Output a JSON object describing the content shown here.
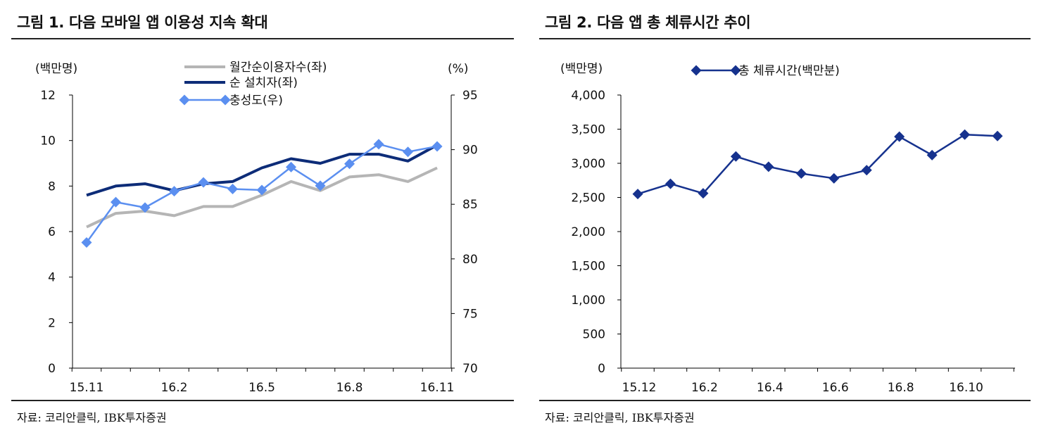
{
  "figures": [
    {
      "title": "그림 1. 다음 모바일 앱 이용성 지속 확대",
      "source": "자료: 코리안클릭, IBK투자증권"
    },
    {
      "title": "그림 2. 다음 앱 총 체류시간 추이",
      "source": "자료: 코리안클릭, IBK투자증권"
    }
  ],
  "colors": {
    "monthly_users": "#b5b5b5",
    "installers": "#0d2c78",
    "loyalty": "#5b8ff0",
    "dwell_time": "#16328e"
  },
  "chart_data": [
    {
      "type": "line",
      "title": "그림 1. 다음 모바일 앱 이용성 지속 확대",
      "ylabel_left": "(백만명)",
      "ylabel_right": "(%)",
      "ylim_left": [
        0,
        12
      ],
      "ylim_right": [
        70,
        95
      ],
      "yticks_left": [
        "0",
        "2",
        "4",
        "6",
        "8",
        "10",
        "12"
      ],
      "yticks_right": [
        "70",
        "75",
        "80",
        "85",
        "90",
        "95"
      ],
      "x_tick_labels": [
        {
          "index": 0,
          "label": "15.11"
        },
        {
          "index": 3,
          "label": "16.2"
        },
        {
          "index": 6,
          "label": "16.5"
        },
        {
          "index": 9,
          "label": "16.8"
        },
        {
          "index": 12,
          "label": "16.11"
        }
      ],
      "x_count": 13,
      "legend": [
        "월간순이용자수(좌)",
        "순 설치자(좌)",
        "충성도(우)"
      ],
      "legend_position": "top-center",
      "series": [
        {
          "name": "월간순이용자수(좌)",
          "axis": "left",
          "marker": "none",
          "values": [
            6.2,
            6.8,
            6.9,
            6.7,
            7.1,
            7.1,
            7.6,
            8.2,
            7.8,
            8.4,
            8.5,
            8.2,
            8.8
          ]
        },
        {
          "name": "순 설치자(좌)",
          "axis": "left",
          "marker": "none",
          "values": [
            7.6,
            8.0,
            8.1,
            7.8,
            8.1,
            8.2,
            8.8,
            9.2,
            9.0,
            9.4,
            9.4,
            9.1,
            9.8
          ]
        },
        {
          "name": "충성도(우)",
          "axis": "right",
          "marker": "diamond",
          "values": [
            81.5,
            85.2,
            84.7,
            86.2,
            87.0,
            86.4,
            86.3,
            88.4,
            86.7,
            88.7,
            90.5,
            89.8,
            90.3
          ]
        }
      ],
      "grid": false
    },
    {
      "type": "line",
      "title": "그림 2. 다음 앱 총 체류시간 추이",
      "ylabel": "(백만명)",
      "ylim": [
        0,
        4000
      ],
      "yticks": [
        "0",
        "500",
        "1,000",
        "1,500",
        "2,000",
        "2,500",
        "3,000",
        "3,500",
        "4,000"
      ],
      "x_tick_labels": [
        {
          "index": 0,
          "label": "15.12"
        },
        {
          "index": 2,
          "label": "16.2"
        },
        {
          "index": 4,
          "label": "16.4"
        },
        {
          "index": 6,
          "label": "16.6"
        },
        {
          "index": 8,
          "label": "16.8"
        },
        {
          "index": 10,
          "label": "16.10"
        }
      ],
      "x_count": 12,
      "legend": [
        "총 체류시간(백만분)"
      ],
      "legend_position": "top-center",
      "series": [
        {
          "name": "총 체류시간(백만분)",
          "marker": "diamond",
          "values": [
            2550,
            2700,
            2560,
            3100,
            2950,
            2850,
            2780,
            2900,
            3390,
            3120,
            3420,
            3400
          ]
        }
      ],
      "grid": false
    }
  ]
}
